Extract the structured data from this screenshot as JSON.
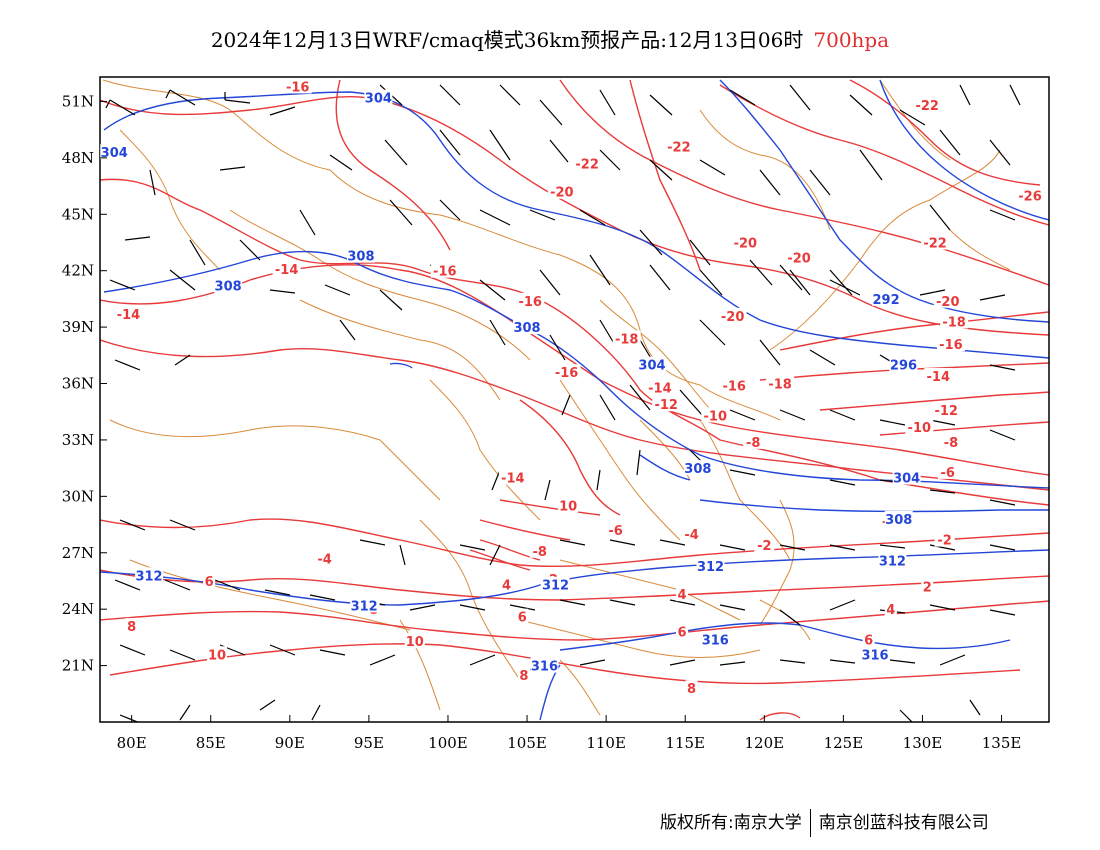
{
  "title": {
    "main": "2024年12月13日WRF/cmaq模式36km预报产品:12月13日06时",
    "level": "700hpa"
  },
  "axes": {
    "lon_ticks": [
      "80E",
      "85E",
      "90E",
      "95E",
      "100E",
      "105E",
      "110E",
      "115E",
      "120E",
      "125E",
      "130E",
      "135E"
    ],
    "lat_ticks": [
      "51N",
      "48N",
      "45N",
      "42N",
      "39N",
      "36N",
      "33N",
      "30N",
      "27N",
      "24N",
      "21N"
    ]
  },
  "colors": {
    "temperature": "#e83a3a",
    "height": "#2346d8",
    "border": "#d98a3a",
    "wind": "#000000"
  },
  "labels": {
    "temperature": [
      {
        "text": "-16",
        "lon": 90.5,
        "lat": 51.8
      },
      {
        "text": "-22",
        "lon": 108.8,
        "lat": 47.7
      },
      {
        "text": "-22",
        "lon": 114.6,
        "lat": 48.6
      },
      {
        "text": "-22",
        "lon": 130.3,
        "lat": 50.8
      },
      {
        "text": "-20",
        "lon": 107.2,
        "lat": 46.2
      },
      {
        "text": "-26",
        "lon": 136.8,
        "lat": 46.0
      },
      {
        "text": "-20",
        "lon": 118.8,
        "lat": 43.5
      },
      {
        "text": "-20",
        "lon": 122.2,
        "lat": 42.7
      },
      {
        "text": "-22",
        "lon": 130.8,
        "lat": 43.5
      },
      {
        "text": "-14",
        "lon": 89.8,
        "lat": 42.1
      },
      {
        "text": "-16",
        "lon": 99.8,
        "lat": 42.0
      },
      {
        "text": "-16",
        "lon": 105.2,
        "lat": 40.4
      },
      {
        "text": "-14",
        "lon": 79.8,
        "lat": 39.7
      },
      {
        "text": "-18",
        "lon": 111.3,
        "lat": 38.4
      },
      {
        "text": "-20",
        "lon": 118.0,
        "lat": 39.6
      },
      {
        "text": "-20",
        "lon": 131.6,
        "lat": 40.4
      },
      {
        "text": "-18",
        "lon": 132.0,
        "lat": 39.3
      },
      {
        "text": "-16",
        "lon": 131.8,
        "lat": 38.1
      },
      {
        "text": "-16",
        "lon": 107.5,
        "lat": 36.6
      },
      {
        "text": "-18",
        "lon": 121.0,
        "lat": 36.0
      },
      {
        "text": "-16",
        "lon": 118.1,
        "lat": 35.9
      },
      {
        "text": "-14",
        "lon": 113.4,
        "lat": 35.8
      },
      {
        "text": "-14",
        "lon": 131.0,
        "lat": 36.4
      },
      {
        "text": "-12",
        "lon": 113.8,
        "lat": 34.9
      },
      {
        "text": "-12",
        "lon": 131.5,
        "lat": 34.6
      },
      {
        "text": "-10",
        "lon": 116.9,
        "lat": 34.3
      },
      {
        "text": "-10",
        "lon": 129.8,
        "lat": 33.7
      },
      {
        "text": "-8",
        "lon": 119.3,
        "lat": 32.9
      },
      {
        "text": "-8",
        "lon": 131.8,
        "lat": 32.9
      },
      {
        "text": "-6",
        "lon": 131.6,
        "lat": 31.3
      },
      {
        "text": "-14",
        "lon": 104.1,
        "lat": 31.0
      },
      {
        "text": "10",
        "lon": 107.6,
        "lat": 29.5
      },
      {
        "text": "-6",
        "lon": 110.6,
        "lat": 28.2
      },
      {
        "text": "-4",
        "lon": 115.4,
        "lat": 28.0
      },
      {
        "text": "-4",
        "lon": 127.9,
        "lat": 28.7
      },
      {
        "text": "-2",
        "lon": 120.0,
        "lat": 27.4
      },
      {
        "text": "-2",
        "lon": 131.4,
        "lat": 27.7
      },
      {
        "text": "-8",
        "lon": 105.8,
        "lat": 27.1
      },
      {
        "text": "-4",
        "lon": 92.2,
        "lat": 26.7
      },
      {
        "text": "4",
        "lon": 103.7,
        "lat": 25.3
      },
      {
        "text": "-2",
        "lon": 106.5,
        "lat": 25.6
      },
      {
        "text": "2",
        "lon": 130.3,
        "lat": 25.2
      },
      {
        "text": "4",
        "lon": 114.8,
        "lat": 24.8
      },
      {
        "text": "4",
        "lon": 128.0,
        "lat": 24.0
      },
      {
        "text": "6",
        "lon": 84.9,
        "lat": 25.5
      },
      {
        "text": "6",
        "lon": 104.7,
        "lat": 23.6
      },
      {
        "text": "8",
        "lon": 95.3,
        "lat": 24.0
      },
      {
        "text": "8",
        "lon": 80.0,
        "lat": 23.1
      },
      {
        "text": "6",
        "lon": 114.8,
        "lat": 22.8
      },
      {
        "text": "6",
        "lon": 126.6,
        "lat": 22.4
      },
      {
        "text": "10",
        "lon": 97.9,
        "lat": 22.3
      },
      {
        "text": "10",
        "lon": 85.4,
        "lat": 21.6
      },
      {
        "text": "8",
        "lon": 104.8,
        "lat": 20.5
      },
      {
        "text": "8",
        "lon": 115.4,
        "lat": 19.8
      }
    ],
    "height": [
      {
        "text": "304",
        "lon": 95.6,
        "lat": 51.2
      },
      {
        "text": "304",
        "lon": 78.9,
        "lat": 48.3
      },
      {
        "text": "308",
        "lon": 94.5,
        "lat": 42.8
      },
      {
        "text": "308",
        "lon": 86.1,
        "lat": 41.2
      },
      {
        "text": "292",
        "lon": 127.7,
        "lat": 40.5
      },
      {
        "text": "308",
        "lon": 105.0,
        "lat": 39.0
      },
      {
        "text": "296",
        "lon": 128.8,
        "lat": 37.0
      },
      {
        "text": "304",
        "lon": 112.9,
        "lat": 37.0
      },
      {
        "text": "308",
        "lon": 115.8,
        "lat": 31.5
      },
      {
        "text": "304",
        "lon": 129.0,
        "lat": 31.0
      },
      {
        "text": "308",
        "lon": 128.5,
        "lat": 28.8
      },
      {
        "text": "312",
        "lon": 81.1,
        "lat": 25.8
      },
      {
        "text": "312",
        "lon": 106.8,
        "lat": 25.3
      },
      {
        "text": "312",
        "lon": 116.6,
        "lat": 26.3
      },
      {
        "text": "312",
        "lon": 128.1,
        "lat": 26.6
      },
      {
        "text": "312",
        "lon": 94.7,
        "lat": 24.2
      },
      {
        "text": "316",
        "lon": 116.9,
        "lat": 22.4
      },
      {
        "text": "316",
        "lon": 106.1,
        "lat": 21.0
      },
      {
        "text": "316",
        "lon": 127.0,
        "lat": 21.6
      }
    ]
  },
  "footer": {
    "left": "版权所有:南京大学",
    "right": "南京创蓝科技有限公司"
  }
}
